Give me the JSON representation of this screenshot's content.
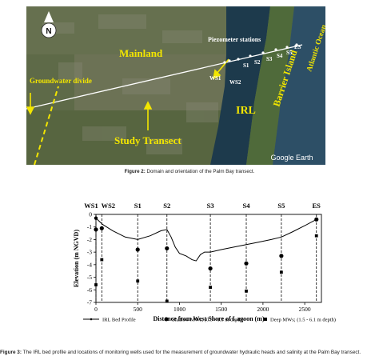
{
  "figure2": {
    "map_labels": {
      "mainland": "Mainland",
      "groundwater_divide": "Groundwater divide",
      "piezometer_stations": "Piezometer stations",
      "study_transect": "Study Transect",
      "irl": "IRL",
      "barrier_island": "Barrier Island",
      "atlantic_ocean": "Atlantic Ocean",
      "ws1": "WS1",
      "ws2": "WS2",
      "stations": [
        "S1",
        "S2",
        "S3",
        "S4",
        "S5",
        "ES"
      ],
      "north": "N",
      "watermark": "Google Earth"
    },
    "caption_label": "Figure 2:",
    "caption_text": " Domain and orientation of the Palm Bay transect."
  },
  "figure3": {
    "caption_label": "Figure 3:",
    "caption_text": " The IRL bed profile and locations of monitoring wells used for the measurement of groundwater hydraulic heads and salinity at the Palm Bay transect."
  },
  "chart_data": {
    "type": "line",
    "xlabel": "Distance from West Shore of Lagoon (m)",
    "ylabel": "Elevation (m NGVD)",
    "xlim": [
      0,
      2700
    ],
    "ylim": [
      -7,
      0
    ],
    "xticks": [
      "0",
      "500",
      "1000",
      "1500",
      "2000",
      "2500"
    ],
    "xtick_values": [
      0,
      500,
      1000,
      1500,
      2000,
      2500
    ],
    "yticks": [
      "0",
      "-1",
      "-2",
      "-3",
      "-4",
      "-5",
      "-6",
      "-7"
    ],
    "ytick_values": [
      0,
      -1,
      -2,
      -3,
      -4,
      -5,
      -6,
      -7
    ],
    "grid": false,
    "legend_position": "bottom",
    "wells": [
      {
        "name": "WS1",
        "x": 0
      },
      {
        "name": "WS2",
        "x": 70
      },
      {
        "name": "S1",
        "x": 500
      },
      {
        "name": "S2",
        "x": 850
      },
      {
        "name": "S3",
        "x": 1370
      },
      {
        "name": "S4",
        "x": 1800
      },
      {
        "name": "S5",
        "x": 2220
      },
      {
        "name": "ES",
        "x": 2640
      }
    ],
    "series": [
      {
        "name": "IRL Bed Profile",
        "x": [
          0,
          80,
          200,
          350,
          500,
          650,
          780,
          850,
          900,
          950,
          1000,
          1080,
          1150,
          1200,
          1250,
          1300,
          1370,
          1500,
          1650,
          1800,
          1950,
          2100,
          2220,
          2350,
          2500,
          2640
        ],
        "y": [
          -0.3,
          -0.8,
          -1.3,
          -1.8,
          -2.0,
          -1.7,
          -1.3,
          -1.2,
          -1.8,
          -2.6,
          -3.1,
          -3.3,
          -3.6,
          -3.7,
          -3.2,
          -3.0,
          -3.0,
          -2.8,
          -2.6,
          -2.4,
          -2.2,
          -2.0,
          -1.8,
          -1.4,
          -0.9,
          -0.4
        ]
      },
      {
        "name": "Shallow MWs; (0.5 - 1.5 m depth)",
        "x": [
          0,
          70,
          500,
          850,
          1370,
          1800,
          2220,
          2640
        ],
        "y": [
          -1.2,
          -1.1,
          -2.8,
          -2.7,
          -4.3,
          -3.9,
          -3.3,
          -0.4
        ]
      },
      {
        "name": "Deep MWs; (1.5 - 6.1 m depth)",
        "x": [
          0,
          70,
          500,
          850,
          1370,
          1800,
          2220,
          2640
        ],
        "y": [
          -5.6,
          -3.6,
          -5.3,
          -6.9,
          -5.8,
          -6.1,
          -4.6,
          -1.7
        ]
      }
    ]
  }
}
